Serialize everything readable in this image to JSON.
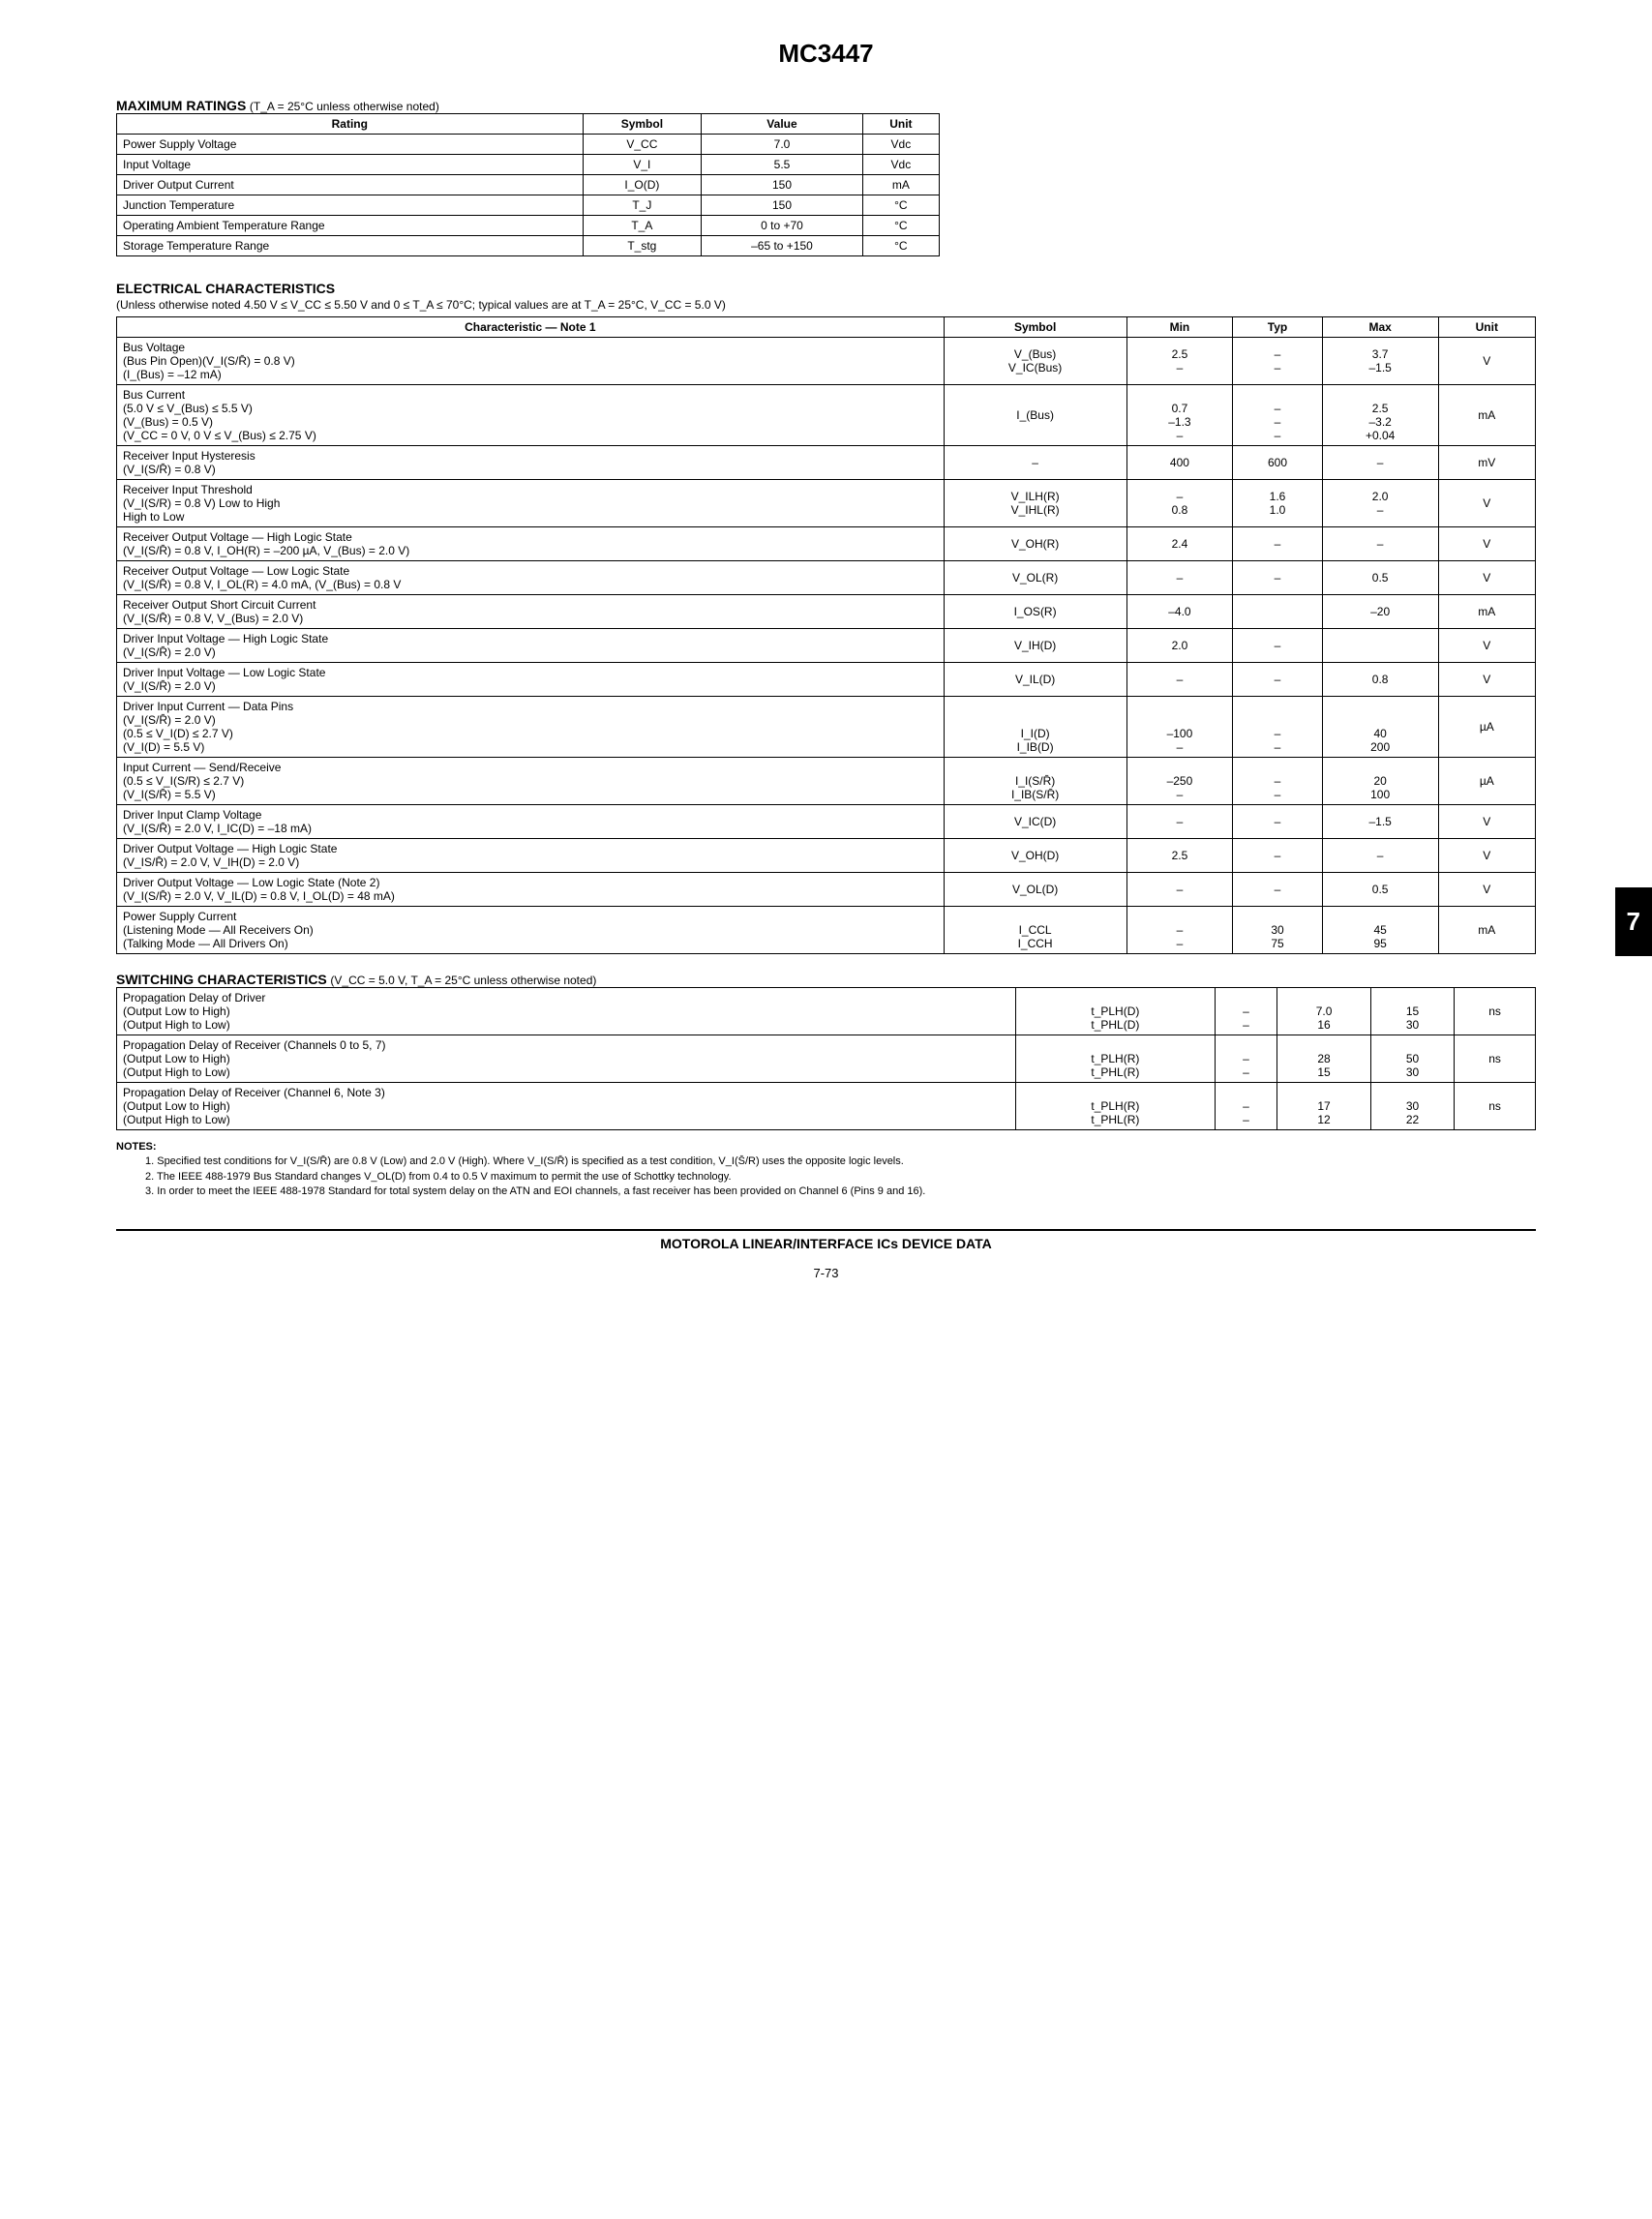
{
  "title": "MC3447",
  "sideTab": "7",
  "maxRatings": {
    "heading": "MAXIMUM RATINGS",
    "condition": "(T_A = 25°C unless otherwise noted)",
    "headers": [
      "Rating",
      "Symbol",
      "Value",
      "Unit"
    ],
    "rows": [
      [
        "Power Supply Voltage",
        "V_CC",
        "7.0",
        "Vdc"
      ],
      [
        "Input Voltage",
        "V_I",
        "5.5",
        "Vdc"
      ],
      [
        "Driver Output Current",
        "I_O(D)",
        "150",
        "mA"
      ],
      [
        "Junction Temperature",
        "T_J",
        "150",
        "°C"
      ],
      [
        "Operating Ambient Temperature Range",
        "T_A",
        "0 to +70",
        "°C"
      ],
      [
        "Storage Temperature Range",
        "T_stg",
        "–65 to +150",
        "°C"
      ]
    ]
  },
  "elecChar": {
    "heading": "ELECTRICAL CHARACTERISTICS",
    "condition": "(Unless otherwise noted 4.50 V ≤ V_CC ≤ 5.50 V and 0 ≤ T_A ≤ 70°C; typical values are at T_A = 25°C, V_CC = 5.0 V)",
    "headers": [
      "Characteristic — Note 1",
      "Symbol",
      "Min",
      "Typ",
      "Max",
      "Unit"
    ],
    "rows": [
      {
        "c": "Bus Voltage\n  (Bus Pin Open)(V_I(S/R̄) = 0.8 V)\n  (I_(Bus) = –12 mA)",
        "s": "V_(Bus)\nV_IC(Bus)",
        "min": "2.5\n–",
        "typ": "–\n–",
        "max": "3.7\n–1.5",
        "u": "V"
      },
      {
        "c": "Bus Current\n  (5.0 V ≤ V_(Bus) ≤ 5.5 V)\n  (V_(Bus) = 0.5 V)\n  (V_CC = 0 V, 0 V ≤ V_(Bus) ≤ 2.75 V)",
        "s": "I_(Bus)",
        "min": "\n0.7\n–1.3\n–",
        "typ": "\n–\n–\n–",
        "max": "\n2.5\n–3.2\n+0.04",
        "u": "mA"
      },
      {
        "c": "Receiver Input Hysteresis\n  (V_I(S/R̄) = 0.8 V)",
        "s": "–",
        "min": "400",
        "typ": "600",
        "max": "–",
        "u": "mV"
      },
      {
        "c": "Receiver Input Threshold\n  (V_I(S/R) = 0.8 V)                                     Low to High\n                                                                       High to Low",
        "s": "V_ILH(R)\nV_IHL(R)",
        "min": "–\n0.8",
        "typ": "1.6\n1.0",
        "max": "2.0\n–",
        "u": "V"
      },
      {
        "c": "Receiver Output Voltage — High Logic State\n  (V_I(S/R̄) = 0.8 V, I_OH(R) = –200 µA, V_(Bus) = 2.0 V)",
        "s": "V_OH(R)",
        "min": "2.4",
        "typ": "–",
        "max": "–",
        "u": "V"
      },
      {
        "c": "Receiver Output Voltage — Low Logic State\n  (V_I(S/R̄) = 0.8 V, I_OL(R) = 4.0 mA, (V_(Bus) = 0.8 V",
        "s": "V_OL(R)",
        "min": "–",
        "typ": "–",
        "max": "0.5",
        "u": "V"
      },
      {
        "c": "Receiver Output Short Circuit Current\n  (V_I(S/R̄) = 0.8 V, V_(Bus) = 2.0 V)",
        "s": "I_OS(R)",
        "min": "–4.0",
        "typ": "",
        "max": "–20",
        "u": "mA"
      },
      {
        "c": "Driver Input Voltage — High Logic State\n  (V_I(S/R̄) = 2.0 V)",
        "s": "V_IH(D)",
        "min": "2.0",
        "typ": "–",
        "max": "",
        "u": "V"
      },
      {
        "c": "Driver Input Voltage — Low Logic State\n  (V_I(S/R̄) = 2.0 V)",
        "s": "V_IL(D)",
        "min": "–",
        "typ": "–",
        "max": "0.8",
        "u": "V"
      },
      {
        "c": "Driver Input Current — Data Pins\n  (V_I(S/R̄) = 2.0 V)\n    (0.5 ≤ V_I(D) ≤ 2.7 V)\n    (V_I(D) = 5.5 V)",
        "s": "\n\nI_I(D)\nI_IB(D)",
        "min": "\n\n–100\n–",
        "typ": "\n\n–\n–",
        "max": "\n\n40\n200",
        "u": "µA"
      },
      {
        "c": "Input Current — Send/Receive\n  (0.5 ≤ V_I(S/R) ≤ 2.7 V)\n  (V_I(S/R̄) = 5.5 V)",
        "s": "\nI_I(S/R̄)\nI_IB(S/R̄)",
        "min": "\n–250\n–",
        "typ": "\n–\n–",
        "max": "\n20\n100",
        "u": "µA"
      },
      {
        "c": "Driver Input Clamp Voltage\n  (V_I(S/R̄) = 2.0 V, I_IC(D) = –18 mA)",
        "s": "V_IC(D)",
        "min": "–",
        "typ": "–",
        "max": "–1.5",
        "u": "V"
      },
      {
        "c": "Driver Output Voltage — High Logic State\n  (V_IS/R̄) = 2.0 V, V_IH(D) = 2.0 V)",
        "s": "V_OH(D)",
        "min": "2.5",
        "typ": "–",
        "max": "–",
        "u": "V"
      },
      {
        "c": "Driver Output Voltage — Low Logic State (Note 2)\n  (V_I(S/R̄) = 2.0 V, V_IL(D) = 0.8 V, I_OL(D) = 48 mA)",
        "s": "V_OL(D)",
        "min": "–",
        "typ": "–",
        "max": "0.5",
        "u": "V"
      },
      {
        "c": "Power Supply Current\n  (Listening Mode — All Receivers On)\n  (Talking Mode — All Drivers On)",
        "s": "\nI_CCL\nI_CCH",
        "min": "\n–\n–",
        "typ": "\n30\n75",
        "max": "\n45\n95",
        "u": "mA"
      }
    ]
  },
  "switchChar": {
    "heading": "SWITCHING CHARACTERISTICS",
    "condition": "(V_CC = 5.0 V, T_A = 25°C unless otherwise noted)",
    "rows": [
      {
        "c": "Propagation Delay of Driver\n  (Output Low to High)\n  (Output High to Low)",
        "s": "\nt_PLH(D)\nt_PHL(D)",
        "min": "\n–\n–",
        "typ": "\n7.0\n16",
        "max": "\n15\n30",
        "u": "ns"
      },
      {
        "c": "Propagation Delay of Receiver (Channels 0 to 5, 7)\n  (Output Low to High)\n  (Output High to Low)",
        "s": "\nt_PLH(R)\nt_PHL(R)",
        "min": "\n–\n–",
        "typ": "\n28\n15",
        "max": "\n50\n30",
        "u": "ns"
      },
      {
        "c": "Propagation Delay of Receiver (Channel 6, Note 3)\n  (Output Low to High)\n  (Output High to Low)",
        "s": "\nt_PLH(R)\nt_PHL(R)",
        "min": "\n–\n–",
        "typ": "\n17\n12",
        "max": "\n30\n22",
        "u": "ns"
      }
    ]
  },
  "notes": {
    "label": "NOTES:",
    "items": [
      "1. Specified test conditions for V_I(S/R̄) are 0.8 V (Low) and 2.0 V (High). Where V_I(S/R̄) is specified as a test condition, V_I(S̄/R) uses the opposite logic levels.",
      "2. The IEEE 488-1979 Bus Standard changes V_OL(D) from 0.4 to 0.5 V maximum to permit the use of Schottky technology.",
      "3. In order to meet the IEEE 488-1978 Standard for total system delay on the ATN and EOI channels, a fast receiver has been provided on Channel 6 (Pins 9 and 16)."
    ]
  },
  "footer": "MOTOROLA LINEAR/INTERFACE ICs DEVICE DATA",
  "pageNum": "7-73"
}
